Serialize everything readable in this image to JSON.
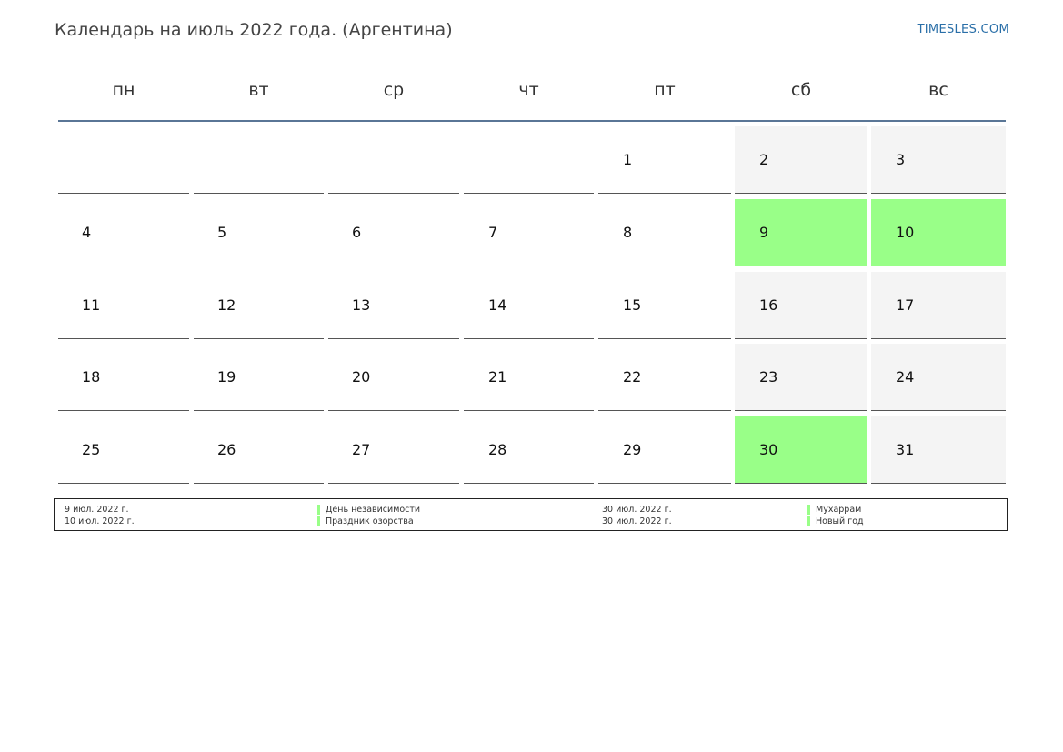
{
  "header": {
    "title": "Календарь на июль 2022 года. (Аргентина)",
    "site": "TIMESLES.COM"
  },
  "weekdays": [
    "пн",
    "вт",
    "ср",
    "чт",
    "пт",
    "сб",
    "вс"
  ],
  "colors": {
    "holiday": "#99ff88",
    "weekend": "#f4f4f4",
    "header_rule": "#5a7696",
    "site_link": "#2a6fa8"
  },
  "weeks": [
    [
      {
        "day": "",
        "type": "empty"
      },
      {
        "day": "",
        "type": "empty"
      },
      {
        "day": "",
        "type": "empty"
      },
      {
        "day": "",
        "type": "empty"
      },
      {
        "day": "1",
        "type": "normal"
      },
      {
        "day": "2",
        "type": "weekend"
      },
      {
        "day": "3",
        "type": "weekend"
      }
    ],
    [
      {
        "day": "4",
        "type": "normal"
      },
      {
        "day": "5",
        "type": "normal"
      },
      {
        "day": "6",
        "type": "normal"
      },
      {
        "day": "7",
        "type": "normal"
      },
      {
        "day": "8",
        "type": "normal"
      },
      {
        "day": "9",
        "type": "holiday"
      },
      {
        "day": "10",
        "type": "holiday"
      }
    ],
    [
      {
        "day": "11",
        "type": "normal"
      },
      {
        "day": "12",
        "type": "normal"
      },
      {
        "day": "13",
        "type": "normal"
      },
      {
        "day": "14",
        "type": "normal"
      },
      {
        "day": "15",
        "type": "normal"
      },
      {
        "day": "16",
        "type": "weekend"
      },
      {
        "day": "17",
        "type": "weekend"
      }
    ],
    [
      {
        "day": "18",
        "type": "normal"
      },
      {
        "day": "19",
        "type": "normal"
      },
      {
        "day": "20",
        "type": "normal"
      },
      {
        "day": "21",
        "type": "normal"
      },
      {
        "day": "22",
        "type": "normal"
      },
      {
        "day": "23",
        "type": "weekend"
      },
      {
        "day": "24",
        "type": "weekend"
      }
    ],
    [
      {
        "day": "25",
        "type": "normal"
      },
      {
        "day": "26",
        "type": "normal"
      },
      {
        "day": "27",
        "type": "normal"
      },
      {
        "day": "28",
        "type": "normal"
      },
      {
        "day": "29",
        "type": "normal"
      },
      {
        "day": "30",
        "type": "holiday"
      },
      {
        "day": "31",
        "type": "weekend"
      }
    ]
  ],
  "legend": [
    {
      "date": "9 июл. 2022 г.",
      "name": "День независимости"
    },
    {
      "date": "10 июл. 2022 г.",
      "name": "Праздник озорства"
    },
    {
      "date": "30 июл. 2022 г.",
      "name": "Мухаррам"
    },
    {
      "date": "30 июл. 2022 г.",
      "name": "Новый год"
    }
  ]
}
